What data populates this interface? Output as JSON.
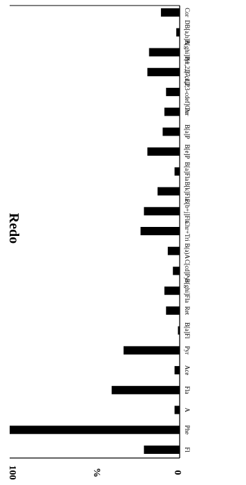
{
  "chart_data": {
    "type": "bar",
    "orientation": "rotated (categories run down the page, values grow leftward)",
    "title": "Redo",
    "ylabel": "%",
    "ylim": [
      0,
      100
    ],
    "yticks": [
      "100",
      "%",
      "0"
    ],
    "categories": [
      "Fl",
      "Phe",
      "A",
      "Fla",
      "Ace",
      "Pyr",
      "B[a]Fl",
      "Ret",
      "B[ghi]Fla",
      "C[cd]Pyr",
      "B(a)A",
      "Chr+Tri",
      "B[b+j]Fla",
      "B[k]Fla",
      "B[a]Fla",
      "B[e]P",
      "B[a]P",
      "Per",
      "I[7,1,2,3-cdef]Chr",
      "I[1,2,3-cd]P",
      "B[ghi]Per",
      "DB[a,h]A",
      "Cor"
    ],
    "values": [
      21,
      100,
      3,
      40,
      3,
      33,
      1,
      8,
      9,
      4,
      7,
      23,
      21,
      13,
      3,
      19,
      10,
      9,
      8,
      19,
      18,
      2,
      11
    ],
    "bar_color": "#000000",
    "grid": false,
    "legend": "none"
  }
}
